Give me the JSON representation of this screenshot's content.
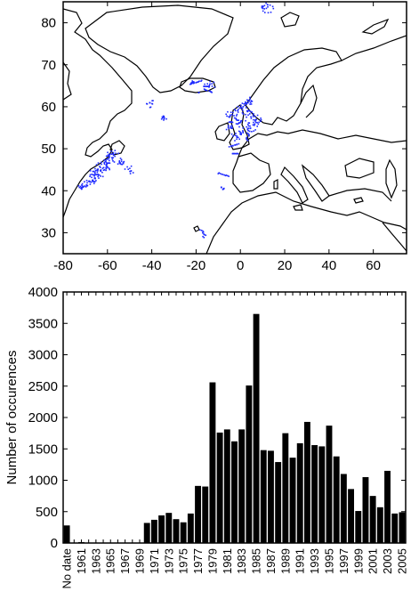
{
  "chart_data": [
    {
      "type": "scatter",
      "title": "",
      "xlabel": "",
      "ylabel": "",
      "xlim": [
        -80,
        75
      ],
      "ylim": [
        25,
        85
      ],
      "xticks": [
        -80,
        -60,
        -40,
        -20,
        0,
        20,
        40,
        60
      ],
      "yticks": [
        30,
        40,
        50,
        60,
        70,
        80
      ],
      "point_color": "#1f2bff",
      "series": [
        {
          "values": [
            {
              "x": -67,
              "y": 44
            },
            {
              "x": -65,
              "y": 45
            },
            {
              "x": -63,
              "y": 46
            },
            {
              "x": -61,
              "y": 47
            },
            {
              "x": -60,
              "y": 48.5
            },
            {
              "x": -58,
              "y": 49
            },
            {
              "x": -68,
              "y": 42.5
            },
            {
              "x": -70,
              "y": 41.5
            },
            {
              "x": -64,
              "y": 44
            },
            {
              "x": -62,
              "y": 45.5
            },
            {
              "x": -59,
              "y": 46.5
            },
            {
              "x": -56,
              "y": 47.5
            },
            {
              "x": -53,
              "y": 46.5
            },
            {
              "x": -50,
              "y": 45
            },
            {
              "x": -72,
              "y": 40.5
            },
            {
              "x": -66,
              "y": 43
            },
            {
              "x": -23,
              "y": 65.5
            },
            {
              "x": -20,
              "y": 66
            },
            {
              "x": -17,
              "y": 65
            },
            {
              "x": -15,
              "y": 64
            },
            {
              "x": -19,
              "y": 63.5
            },
            {
              "x": -14,
              "y": 65.5
            },
            {
              "x": -5,
              "y": 58
            },
            {
              "x": -2,
              "y": 59
            },
            {
              "x": 0,
              "y": 60
            },
            {
              "x": 3,
              "y": 59
            },
            {
              "x": 5,
              "y": 58
            },
            {
              "x": 6,
              "y": 56
            },
            {
              "x": 4,
              "y": 55
            },
            {
              "x": 1,
              "y": 56
            },
            {
              "x": -1,
              "y": 57
            },
            {
              "x": 2,
              "y": 61
            },
            {
              "x": 5,
              "y": 61.5
            },
            {
              "x": 7,
              "y": 57
            },
            {
              "x": -4,
              "y": 55
            },
            {
              "x": -2,
              "y": 53
            },
            {
              "x": 0,
              "y": 53.5
            },
            {
              "x": 3,
              "y": 53
            },
            {
              "x": -6,
              "y": 56
            },
            {
              "x": -3,
              "y": 51
            },
            {
              "x": -4,
              "y": 49
            },
            {
              "x": -8,
              "y": 44
            },
            {
              "x": -9,
              "y": 41
            },
            {
              "x": -17,
              "y": 30
            },
            {
              "x": -35,
              "y": 58
            },
            {
              "x": -41,
              "y": 61
            },
            {
              "x": 10,
              "y": 84
            },
            {
              "x": 12,
              "y": 83.5
            }
          ]
        }
      ]
    },
    {
      "type": "bar",
      "title": "",
      "xlabel": "",
      "ylabel": "Number of occurences",
      "ylim": [
        0,
        4000
      ],
      "yticks": [
        0,
        500,
        1000,
        1500,
        2000,
        2500,
        3000,
        3500,
        4000
      ],
      "bar_color": "#000000",
      "categories": [
        "No date",
        "1960",
        "1961",
        "1962",
        "1963",
        "1964",
        "1965",
        "1966",
        "1967",
        "1968",
        "1969",
        "1970",
        "1971",
        "1972",
        "1973",
        "1974",
        "1975",
        "1976",
        "1977",
        "1978",
        "1979",
        "1980",
        "1981",
        "1982",
        "1983",
        "1984",
        "1985",
        "1986",
        "1987",
        "1988",
        "1989",
        "1990",
        "1991",
        "1992",
        "1993",
        "1994",
        "1995",
        "1996",
        "1997",
        "1998",
        "1999",
        "2000",
        "2001",
        "2002",
        "2003",
        "2004",
        "2005"
      ],
      "tick_labels": [
        "No date",
        "1961",
        "1963",
        "1965",
        "1967",
        "1969",
        "1971",
        "1973",
        "1975",
        "1977",
        "1979",
        "1981",
        "1983",
        "1985",
        "1987",
        "1989",
        "1991",
        "1993",
        "1995",
        "1997",
        "1999",
        "2001",
        "2003",
        "2005"
      ],
      "values": [
        280,
        0,
        15,
        0,
        0,
        0,
        0,
        0,
        0,
        0,
        0,
        320,
        370,
        440,
        480,
        380,
        330,
        470,
        910,
        900,
        2560,
        1760,
        1810,
        1620,
        1810,
        2510,
        3650,
        1480,
        1470,
        1290,
        1750,
        1360,
        1590,
        1930,
        1560,
        1540,
        1870,
        1380,
        1100,
        860,
        510,
        1050,
        750,
        570,
        1150,
        470,
        490
      ]
    }
  ]
}
